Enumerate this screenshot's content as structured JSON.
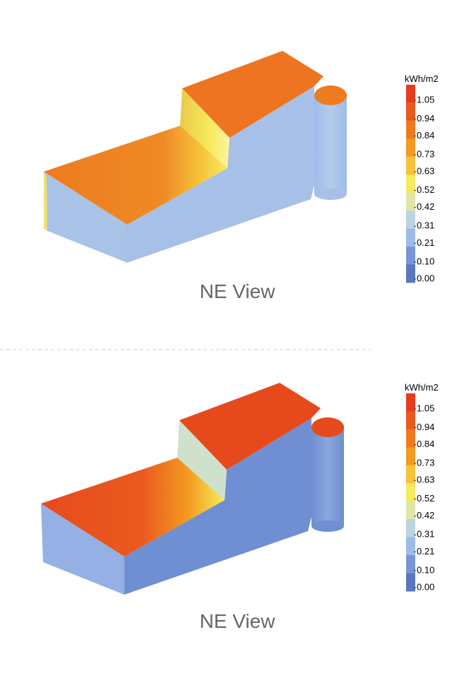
{
  "panels": [
    {
      "legend": {
        "unit": "kWh/m2",
        "ticks": [
          1.05,
          0.94,
          0.84,
          0.73,
          0.63,
          0.52,
          0.42,
          0.31,
          0.21,
          {
            "value": 0.1,
            "label": "0.10"
          },
          {
            "value": 0,
            "label": "0.00"
          }
        ],
        "colors": [
          "#e63c1c",
          "#ea5a1f",
          "#ee7b1f",
          "#f29b20",
          "#f5c23a",
          "#f7ea5c",
          "#dfe6a8",
          "#bcd3e2",
          "#9dbbe9",
          "#7896d6",
          "#5a78bd"
        ]
      },
      "caption": "NE View"
    },
    {
      "legend": {
        "unit": "kWh/m2",
        "ticks": [
          1.05,
          0.94,
          0.84,
          0.73,
          0.63,
          0.52,
          0.42,
          0.31,
          0.21,
          {
            "value": 0.1,
            "label": "0.10"
          },
          {
            "value": 0,
            "label": "0.00"
          }
        ],
        "colors": [
          "#e63c1c",
          "#ea5a1f",
          "#ee7b1f",
          "#f29b20",
          "#f5c23a",
          "#f7ea5c",
          "#dfe6a8",
          "#bcd3e2",
          "#9dbbe9",
          "#7896d6",
          "#5a78bd"
        ]
      },
      "caption": "NE View"
    }
  ]
}
